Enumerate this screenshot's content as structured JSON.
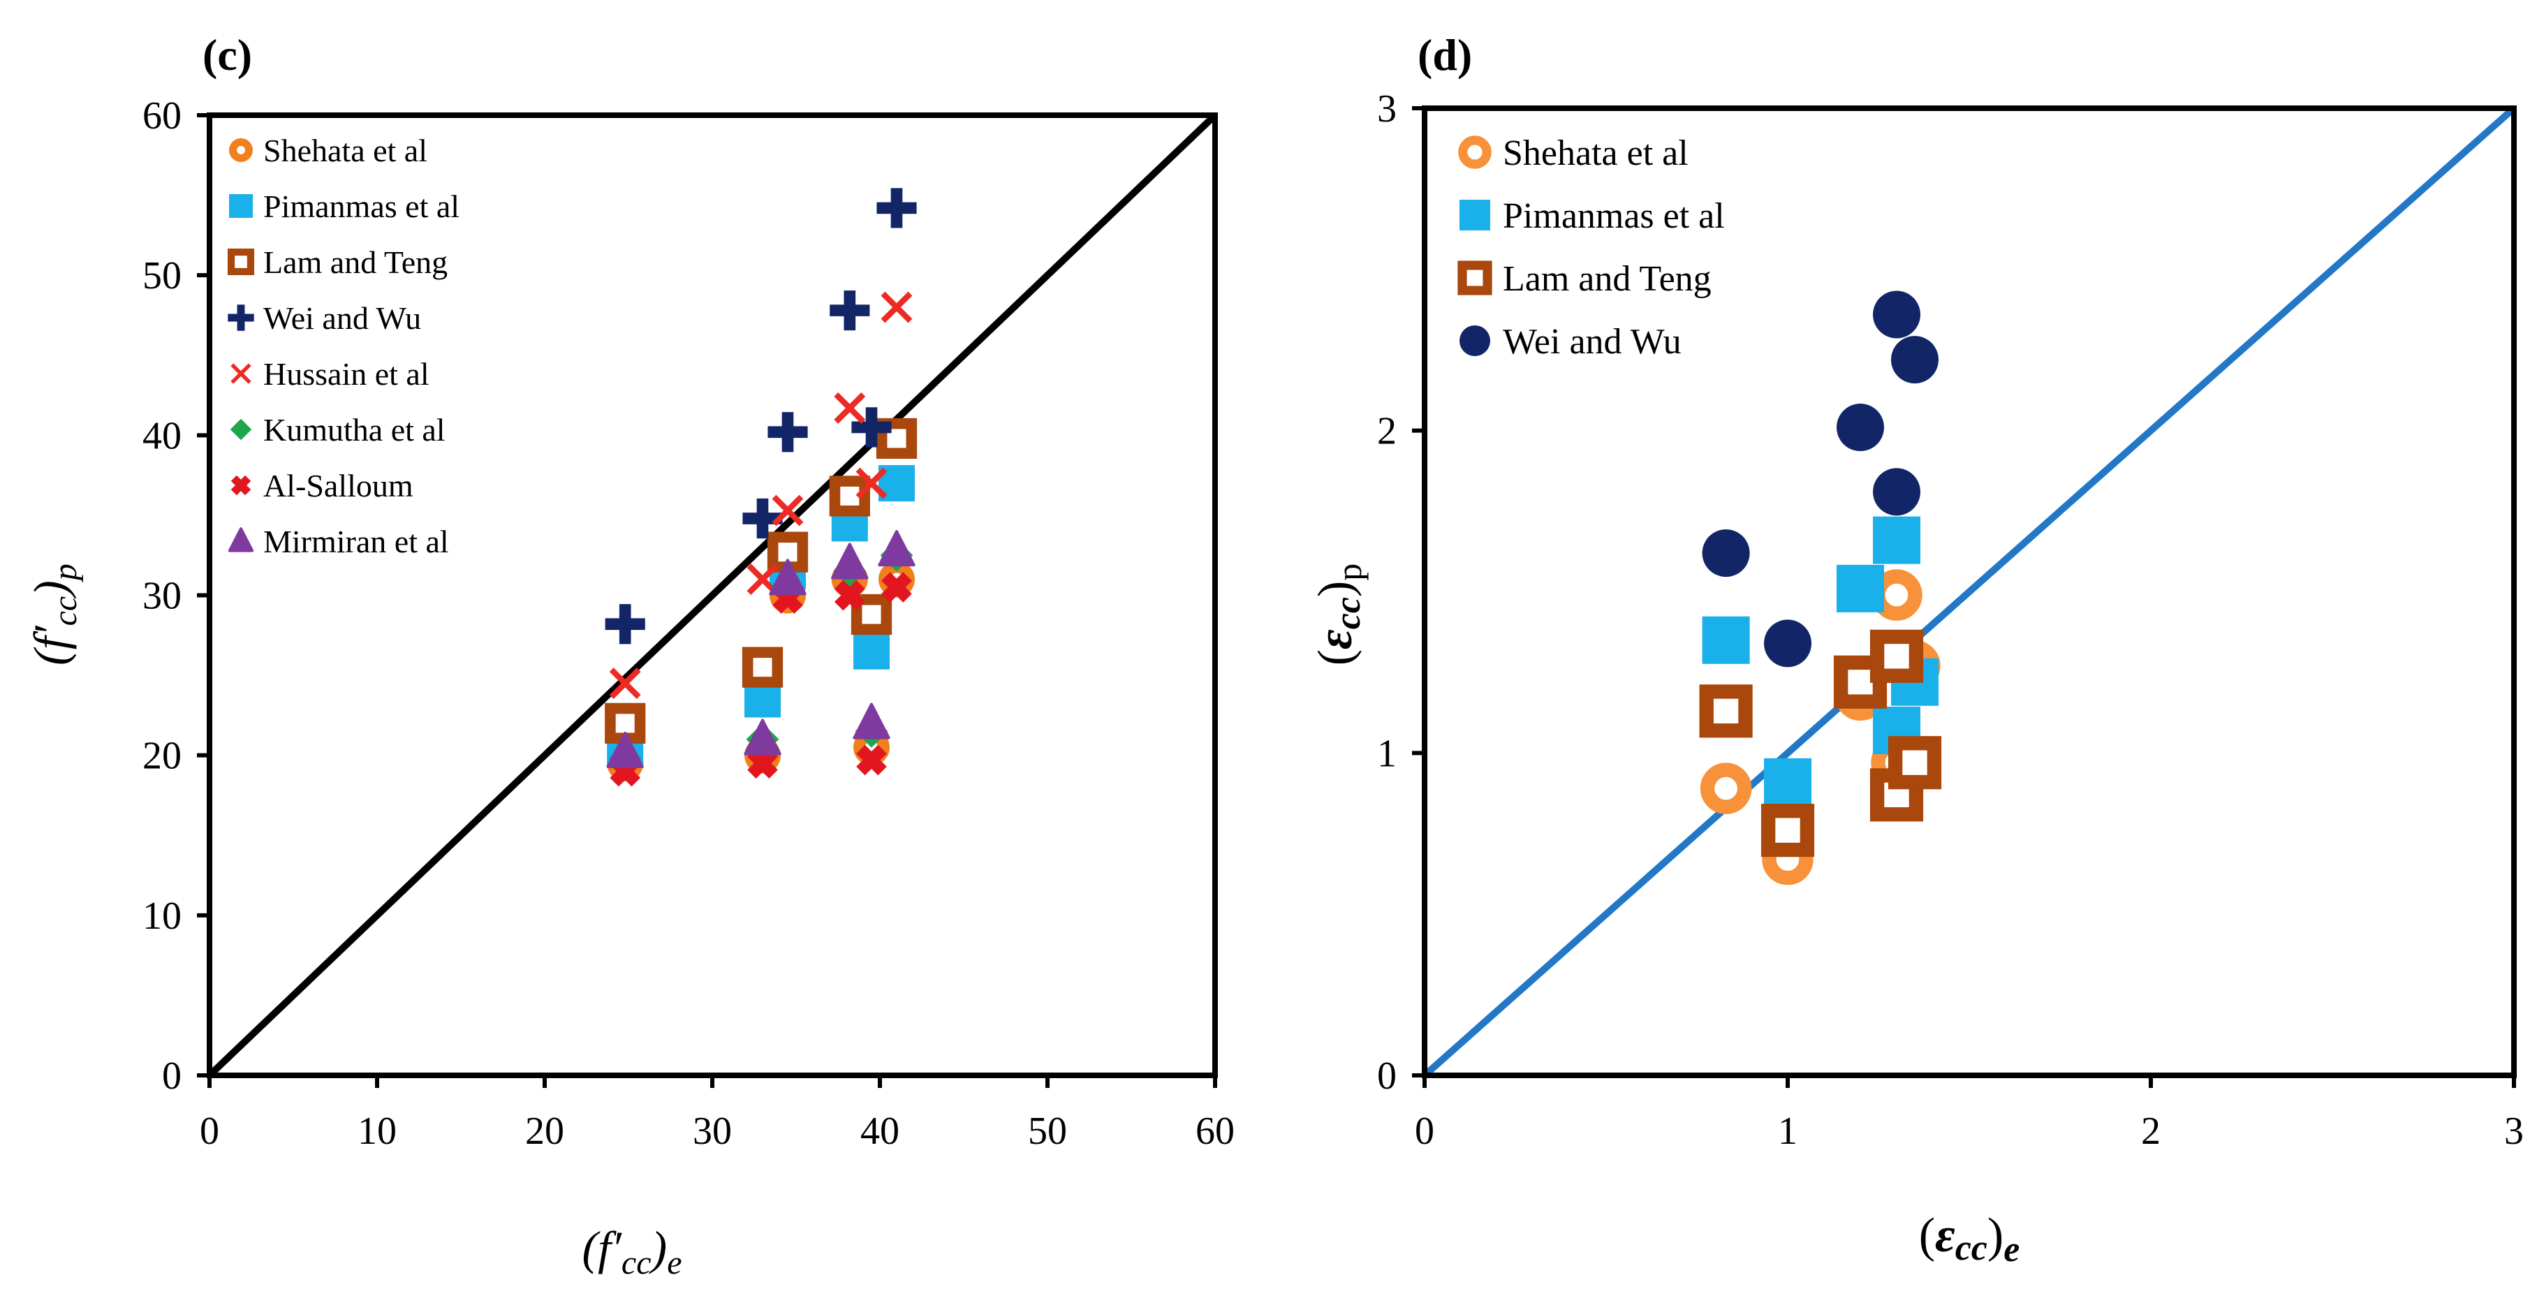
{
  "colors": {
    "shehata": "#f07f1c",
    "shehata_d": "#f7923a",
    "pimanmas": "#1ab0ea",
    "lam": "#a9470c",
    "wei": "#122566",
    "hussain": "#ee2a24",
    "kumutha": "#1fa64a",
    "alsalloum": "#e2161f",
    "mirmiran": "#7e3a9f",
    "diag_c": "#000000",
    "diag_d": "#2277c7"
  },
  "chart_data": [
    {
      "panel_label": "(c)",
      "type": "scatter",
      "x_title": {
        "open": "(",
        "f": "f",
        "prime": "′",
        "sub": "cc",
        "close": ")",
        "subscript": "e"
      },
      "y_title": {
        "open": "(",
        "f": "f",
        "prime": "′",
        "sub": "cc",
        "close": ")",
        "subscript": "p"
      },
      "xlim": [
        0,
        60
      ],
      "ylim": [
        0,
        60
      ],
      "x_ticks": [
        "0",
        "10",
        "20",
        "30",
        "40",
        "50",
        "60"
      ],
      "y_ticks": [
        "0",
        "10",
        "20",
        "30",
        "40",
        "50",
        "60"
      ],
      "legend_position": "top-left",
      "reference_line": "y = x",
      "series": [
        {
          "name": "Shehata et al",
          "marker": "ring-dot",
          "color_key": "shehata",
          "points": [
            [
              24.8,
              19.5
            ],
            [
              33,
              20
            ],
            [
              34.5,
              30
            ],
            [
              38.2,
              31
            ],
            [
              39.5,
              20.5
            ],
            [
              41,
              31
            ]
          ]
        },
        {
          "name": "Pimanmas et al",
          "marker": "square",
          "color_key": "pimanmas",
          "points": [
            [
              24.8,
              20.5
            ],
            [
              33,
              23.5
            ],
            [
              34.5,
              31.5
            ],
            [
              38.2,
              34.5
            ],
            [
              39.5,
              26.5
            ],
            [
              41,
              37
            ]
          ]
        },
        {
          "name": "Lam and Teng",
          "marker": "hollow-square",
          "color_key": "lam",
          "points": [
            [
              24.8,
              22
            ],
            [
              33,
              25.5
            ],
            [
              34.5,
              32.7
            ],
            [
              38.2,
              36.2
            ],
            [
              39.5,
              28.8
            ],
            [
              41,
              39.8
            ]
          ]
        },
        {
          "name": "Wei and Wu",
          "marker": "plus",
          "color_key": "wei",
          "points": [
            [
              24.8,
              28.2
            ],
            [
              33,
              34.8
            ],
            [
              34.5,
              40.2
            ],
            [
              38.2,
              47.8
            ],
            [
              39.5,
              40.5
            ],
            [
              41,
              54.2
            ]
          ]
        },
        {
          "name": "Hussain et al",
          "marker": "x",
          "color_key": "hussain",
          "points": [
            [
              24.8,
              24.5
            ],
            [
              33,
              31
            ],
            [
              34.5,
              35.3
            ],
            [
              38.2,
              41.7
            ],
            [
              39.5,
              37
            ],
            [
              41,
              48
            ]
          ]
        },
        {
          "name": "Kumutha et al",
          "marker": "diamond",
          "color_key": "kumutha",
          "points": [
            [
              24.8,
              19.8
            ],
            [
              33,
              21
            ],
            [
              34.5,
              30.5
            ],
            [
              38.2,
              31.5
            ],
            [
              39.5,
              21.5
            ],
            [
              41,
              32.5
            ]
          ]
        },
        {
          "name": "Al-Salloum",
          "marker": "bold-x",
          "color_key": "alsalloum",
          "points": [
            [
              24.8,
              19
            ],
            [
              33,
              19.5
            ],
            [
              34.5,
              29.8
            ],
            [
              38.2,
              30
            ],
            [
              39.5,
              19.7
            ],
            [
              41,
              30.5
            ]
          ]
        },
        {
          "name": "Mirmiran et al",
          "marker": "triangle",
          "color_key": "mirmiran",
          "points": [
            [
              24.8,
              20.2
            ],
            [
              33,
              21
            ],
            [
              34.5,
              31
            ],
            [
              38.2,
              32
            ],
            [
              39.5,
              22
            ],
            [
              41,
              32.8
            ]
          ]
        }
      ]
    },
    {
      "panel_label": "(d)",
      "type": "scatter",
      "x_title": {
        "open": "(",
        "eps": "ε",
        "sub": "cc",
        "close": ")",
        "subscript": "e"
      },
      "y_title": {
        "open": "(",
        "eps": "ε",
        "sub": "cc",
        "close": ")",
        "subscript": "p"
      },
      "xlim": [
        0,
        3
      ],
      "ylim": [
        0,
        3
      ],
      "x_ticks": [
        "0",
        "1",
        "2",
        "3"
      ],
      "y_ticks": [
        "0",
        "1",
        "2",
        "3"
      ],
      "legend_position": "top-left",
      "reference_line": "y = x",
      "series": [
        {
          "name": "Shehata et al",
          "marker": "open-circle",
          "color_key": "shehata_d",
          "points": [
            [
              0.83,
              0.89
            ],
            [
              1.0,
              0.67
            ],
            [
              1.2,
              1.18
            ],
            [
              1.3,
              1.49
            ],
            [
              1.3,
              0.97
            ],
            [
              1.35,
              1.27
            ]
          ]
        },
        {
          "name": "Pimanmas et al",
          "marker": "square",
          "color_key": "pimanmas",
          "points": [
            [
              0.83,
              1.35
            ],
            [
              1.0,
              0.91
            ],
            [
              1.2,
              1.51
            ],
            [
              1.3,
              1.66
            ],
            [
              1.3,
              1.07
            ],
            [
              1.35,
              1.22
            ]
          ]
        },
        {
          "name": "Lam and Teng",
          "marker": "hollow-square",
          "color_key": "lam",
          "points": [
            [
              0.83,
              1.13
            ],
            [
              1.0,
              0.76
            ],
            [
              1.2,
              1.22
            ],
            [
              1.3,
              1.3
            ],
            [
              1.3,
              0.87
            ],
            [
              1.35,
              0.97
            ]
          ]
        },
        {
          "name": "Wei and Wu",
          "marker": "circle",
          "color_key": "wei",
          "points": [
            [
              0.83,
              1.62
            ],
            [
              1.0,
              1.34
            ],
            [
              1.2,
              2.01
            ],
            [
              1.3,
              2.36
            ],
            [
              1.3,
              1.81
            ],
            [
              1.35,
              2.22
            ]
          ]
        }
      ]
    }
  ]
}
